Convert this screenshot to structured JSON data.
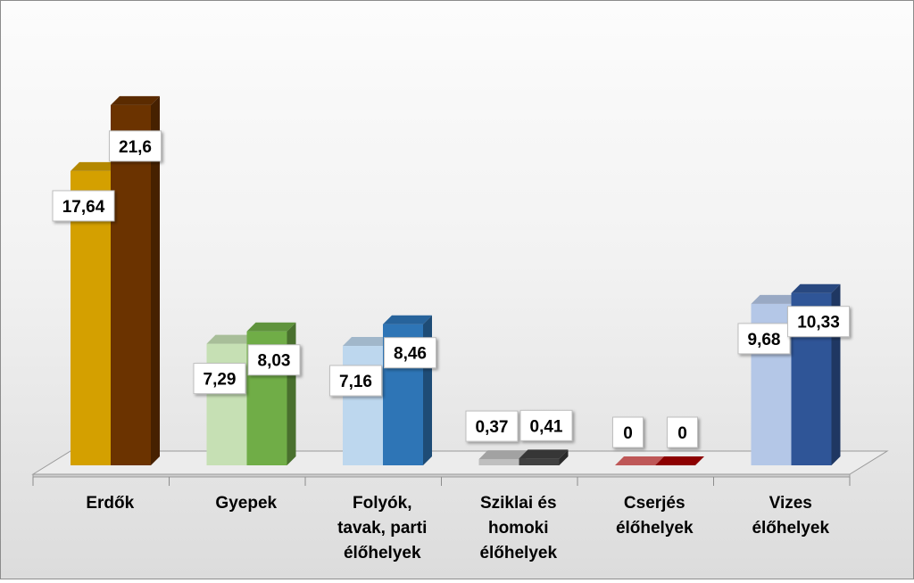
{
  "chart_data": {
    "type": "bar",
    "title": "",
    "xlabel": "",
    "ylabel": "",
    "ylim": [
      0,
      22.5
    ],
    "grid": false,
    "legend": "none",
    "categories": [
      [
        "Erdők"
      ],
      [
        "Gyepek"
      ],
      [
        "Folyók,",
        "tavak, parti",
        "élőhelyek"
      ],
      [
        "Sziklai és",
        "homoki",
        "élőhelyek"
      ],
      [
        "Cserjés",
        "élőhelyek"
      ],
      [
        "Vizes",
        "élőhelyek"
      ]
    ],
    "series": [
      {
        "values": [
          17.64,
          7.29,
          7.16,
          0.37,
          0,
          9.68
        ],
        "labels": [
          "17,64",
          "7,29",
          "7,16",
          "0,37",
          "0",
          "9,68"
        ]
      },
      {
        "values": [
          21.6,
          8.03,
          8.46,
          0.41,
          0,
          10.33
        ],
        "labels": [
          "21,6",
          "8,03",
          "8,46",
          "0,41",
          "0",
          "10,33"
        ]
      }
    ],
    "colors": [
      [
        "#D4A000",
        "#6B3300"
      ],
      [
        "#C6E0B4",
        "#70AD47"
      ],
      [
        "#BDD7EE",
        "#2E75B6"
      ],
      [
        "#BFBFBF",
        "#404040"
      ],
      [
        "#E06666",
        "#A50000"
      ],
      [
        "#B4C7E7",
        "#2F5597"
      ]
    ]
  }
}
